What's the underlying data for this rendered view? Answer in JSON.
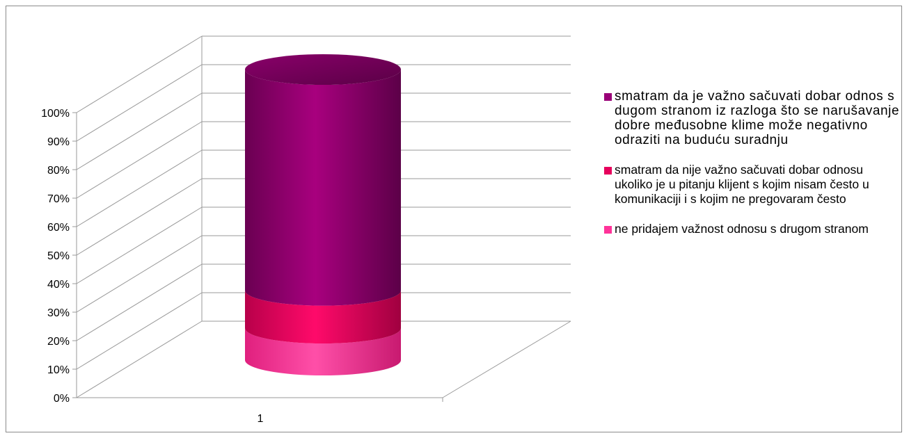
{
  "chart_data": {
    "type": "bar",
    "subtype": "stacked-100-cylinder-3d",
    "categories": [
      "1"
    ],
    "series": [
      {
        "name": "ne pridajem važnost odnosu s drugom stranom",
        "values": [
          11
        ],
        "color": "#ff3399"
      },
      {
        "name": "smatram da nije važno sačuvati dobar odnosu ukoliko je u pitanju klijent s kojim nisam često u komunikaciji i s kojim ne pregovaram često",
        "values": [
          13
        ],
        "color": "#e6005c"
      },
      {
        "name": "smatram da je važno sačuvati dobar odnos s dugom stranom iz razloga što se narušavanje dobre međusobne klime može negativno odraziti na buduću suradnju",
        "values": [
          76
        ],
        "color": "#990077"
      }
    ],
    "y_ticks": [
      "0%",
      "10%",
      "20%",
      "30%",
      "40%",
      "50%",
      "60%",
      "70%",
      "80%",
      "90%",
      "100%"
    ],
    "ylim": [
      0,
      100
    ],
    "grid": true,
    "legend_position": "right"
  },
  "legend": {
    "items": [
      {
        "label": "smatram da je važno sačuvati dobar odnos s dugom stranom iz razloga što se narušavanje dobre međusobne klime može negativno odraziti na buduću suradnju",
        "color": "#990077"
      },
      {
        "label": "smatram da nije važno sačuvati dobar odnosu ukoliko je u pitanju klijent s kojim nisam često u komunikaciji i s kojim ne pregovaram često",
        "color": "#e6005c"
      },
      {
        "label": "ne pridajem važnost odnosu s drugom stranom",
        "color": "#ff3399"
      }
    ]
  }
}
